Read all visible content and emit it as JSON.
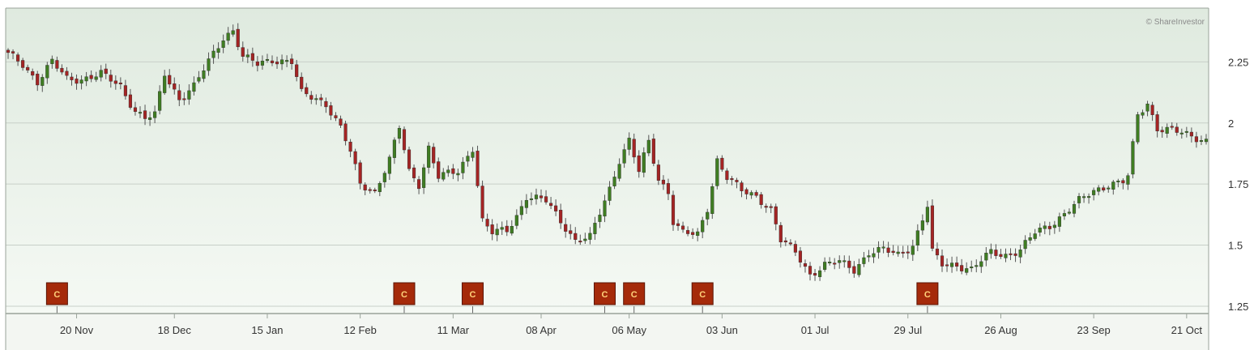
{
  "watermark": "© ShareInvestor",
  "colors": {
    "up": "#3f7d22",
    "down": "#a42424",
    "wick": "#555555",
    "grid": "#c8cfc8",
    "marker_fill": "#a52a0a",
    "bg_top": "#dfeadf",
    "bg_bottom": "#f5f9f4"
  },
  "chart_data": {
    "type": "candlestick",
    "title": "",
    "xlabel": "",
    "ylabel": "",
    "ylim": [
      1.22,
      2.47
    ],
    "y_ticks": [
      {
        "value": 2.25,
        "label": "2.25"
      },
      {
        "value": 2.0,
        "label": "2"
      },
      {
        "value": 1.75,
        "label": "1.75"
      },
      {
        "value": 1.5,
        "label": "1.5"
      },
      {
        "value": 1.25,
        "label": "1.25"
      }
    ],
    "x_ticks": [
      {
        "index": 14,
        "label": "20 Nov"
      },
      {
        "index": 34,
        "label": "18 Dec"
      },
      {
        "index": 53,
        "label": "15 Jan"
      },
      {
        "index": 72,
        "label": "12 Feb"
      },
      {
        "index": 91,
        "label": "11 Mar"
      },
      {
        "index": 109,
        "label": "08 Apr"
      },
      {
        "index": 127,
        "label": "06 May"
      },
      {
        "index": 146,
        "label": "03 Jun"
      },
      {
        "index": 165,
        "label": "01 Jul"
      },
      {
        "index": 184,
        "label": "29 Jul"
      },
      {
        "index": 203,
        "label": "26 Aug"
      },
      {
        "index": 222,
        "label": "23 Sep"
      },
      {
        "index": 241,
        "label": "21 Oct"
      }
    ],
    "grid": true,
    "x_count": 246,
    "markers": [
      {
        "index": 10,
        "label": "C"
      },
      {
        "index": 81,
        "label": "C"
      },
      {
        "index": 95,
        "label": "C"
      },
      {
        "index": 122,
        "label": "C"
      },
      {
        "index": 128,
        "label": "C"
      },
      {
        "index": 142,
        "label": "C"
      },
      {
        "index": 188,
        "label": "C"
      }
    ],
    "close_path": [
      [
        0,
        2.28
      ],
      [
        3,
        2.24
      ],
      [
        6,
        2.17
      ],
      [
        9,
        2.25
      ],
      [
        12,
        2.18
      ],
      [
        15,
        2.18
      ],
      [
        19,
        2.2
      ],
      [
        23,
        2.15
      ],
      [
        26,
        2.05
      ],
      [
        28,
        2.02
      ],
      [
        30,
        2.03
      ],
      [
        32,
        2.2
      ],
      [
        35,
        2.1
      ],
      [
        38,
        2.15
      ],
      [
        41,
        2.25
      ],
      [
        44,
        2.35
      ],
      [
        46,
        2.38
      ],
      [
        48,
        2.27
      ],
      [
        51,
        2.24
      ],
      [
        54,
        2.26
      ],
      [
        58,
        2.25
      ],
      [
        60,
        2.12
      ],
      [
        63,
        2.1
      ],
      [
        65,
        2.08
      ],
      [
        68,
        1.98
      ],
      [
        70,
        1.88
      ],
      [
        72,
        1.75
      ],
      [
        75,
        1.72
      ],
      [
        78,
        1.85
      ],
      [
        80,
        1.98
      ],
      [
        82,
        1.8
      ],
      [
        84,
        1.75
      ],
      [
        86,
        1.9
      ],
      [
        88,
        1.78
      ],
      [
        92,
        1.8
      ],
      [
        95,
        1.9
      ],
      [
        97,
        1.6
      ],
      [
        99,
        1.55
      ],
      [
        102,
        1.56
      ],
      [
        104,
        1.62
      ],
      [
        106,
        1.7
      ],
      [
        110,
        1.68
      ],
      [
        113,
        1.6
      ],
      [
        116,
        1.52
      ],
      [
        119,
        1.53
      ],
      [
        121,
        1.63
      ],
      [
        123,
        1.73
      ],
      [
        125,
        1.85
      ],
      [
        127,
        1.93
      ],
      [
        129,
        1.8
      ],
      [
        131,
        1.92
      ],
      [
        133,
        1.77
      ],
      [
        135,
        1.72
      ],
      [
        136,
        1.6
      ],
      [
        138,
        1.55
      ],
      [
        141,
        1.54
      ],
      [
        143,
        1.65
      ],
      [
        145,
        1.85
      ],
      [
        147,
        1.78
      ],
      [
        150,
        1.72
      ],
      [
        153,
        1.7
      ],
      [
        156,
        1.65
      ],
      [
        158,
        1.52
      ],
      [
        161,
        1.47
      ],
      [
        164,
        1.38
      ],
      [
        167,
        1.42
      ],
      [
        170,
        1.43
      ],
      [
        173,
        1.4
      ],
      [
        176,
        1.47
      ],
      [
        179,
        1.48
      ],
      [
        182,
        1.46
      ],
      [
        185,
        1.5
      ],
      [
        188,
        1.66
      ],
      [
        189,
        1.47
      ],
      [
        191,
        1.42
      ],
      [
        194,
        1.42
      ],
      [
        197,
        1.4
      ],
      [
        201,
        1.47
      ],
      [
        204,
        1.46
      ],
      [
        207,
        1.48
      ],
      [
        210,
        1.55
      ],
      [
        213,
        1.58
      ],
      [
        216,
        1.63
      ],
      [
        219,
        1.68
      ],
      [
        222,
        1.72
      ],
      [
        225,
        1.75
      ],
      [
        228,
        1.76
      ],
      [
        229,
        1.78
      ],
      [
        231,
        2.03
      ],
      [
        233,
        2.08
      ],
      [
        235,
        1.98
      ],
      [
        238,
        1.97
      ],
      [
        241,
        1.95
      ],
      [
        245,
        1.93
      ]
    ]
  }
}
